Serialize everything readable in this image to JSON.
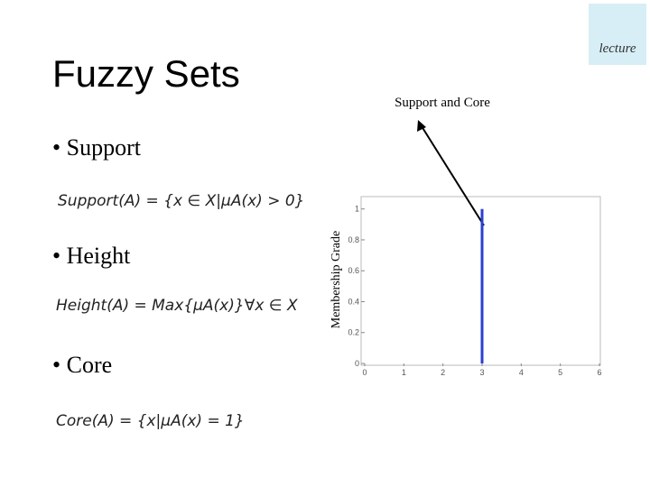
{
  "header": {
    "title": "Fuzzy Sets",
    "logo": "lecture"
  },
  "bullets": [
    {
      "label": "• Support",
      "formula": "Support(A) = {x ∈ X|μA(x) > 0}"
    },
    {
      "label": "• Height",
      "formula": "Height(A) = Max{μA(x)}∀x ∈ X"
    },
    {
      "label": "• Core",
      "formula": "Core(A) = {x|μA(x) = 1}"
    }
  ],
  "chart_data": {
    "type": "line",
    "ylabel": "Membership Grade",
    "annotation": "Support and Core",
    "x": [
      3,
      3
    ],
    "series": [
      {
        "color": "#2a3fd0",
        "values": [
          0,
          1
        ]
      }
    ],
    "xlim": [
      0,
      6
    ],
    "xticks": [
      0,
      1,
      2,
      3,
      4,
      5,
      6
    ],
    "ylim": [
      0,
      1.08
    ],
    "yticks": [
      0,
      0.2,
      0.4,
      0.6,
      0.8,
      1
    ]
  }
}
